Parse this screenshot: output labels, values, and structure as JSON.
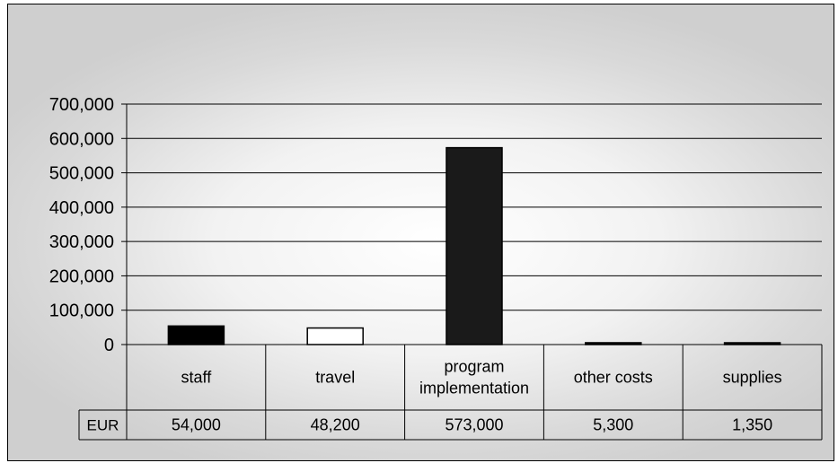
{
  "chart_data": {
    "type": "bar",
    "categories": [
      "staff",
      "travel",
      "program implementation",
      "other costs",
      "supplies"
    ],
    "category_lines": [
      [
        "staff"
      ],
      [
        "travel"
      ],
      [
        "program",
        "implementation"
      ],
      [
        "other costs"
      ],
      [
        "supplies"
      ]
    ],
    "series": [
      {
        "name": "EUR",
        "values": [
          54000,
          48200,
          573000,
          5300,
          1350
        ],
        "value_labels": [
          "54,000",
          "48,200",
          "573,000",
          "5,300",
          "1,350"
        ]
      }
    ],
    "bar_colors": [
      "#000000",
      "#ffffff",
      "#1a1a1a",
      "#000000",
      "#000000"
    ],
    "ylim": [
      0,
      700000
    ],
    "yticks": [
      0,
      100000,
      200000,
      300000,
      400000,
      500000,
      600000,
      700000
    ],
    "ytick_labels": [
      "0",
      "100,000",
      "200,000",
      "300,000",
      "400,000",
      "500,000",
      "600,000",
      "700,000"
    ],
    "grid": true,
    "data_table": true,
    "title": "",
    "xlabel": "",
    "ylabel": ""
  }
}
